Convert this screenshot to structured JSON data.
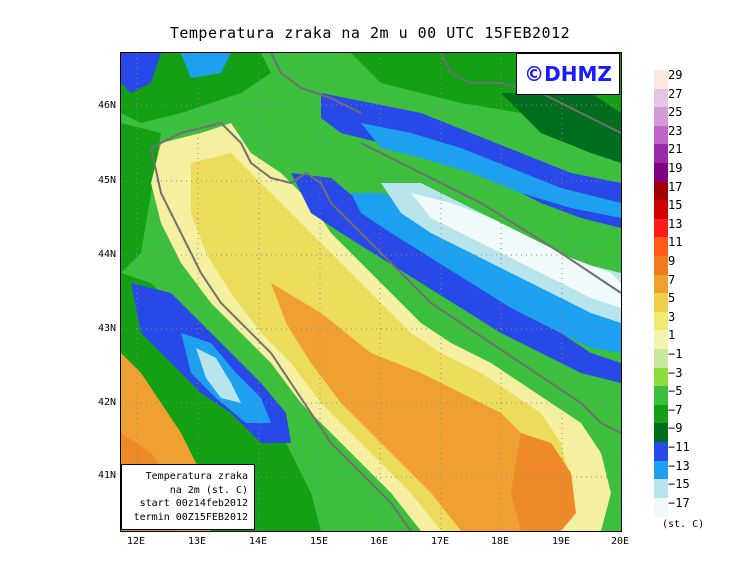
{
  "title": "Temperatura zraka na 2m u 00 UTC 15FEB2012",
  "logo": "©DHMZ",
  "info_box": {
    "line1": "Temperatura zraka",
    "line2": "na 2m (st. C)",
    "line3": "start 00z14feb2012",
    "line4": "termin 00Z15FEB2012"
  },
  "lat_labels": [
    "46N",
    "45N",
    "44N",
    "43N",
    "42N",
    "41N"
  ],
  "lon_labels": [
    "12E",
    "13E",
    "14E",
    "15E",
    "16E",
    "17E",
    "18E",
    "19E",
    "20E"
  ],
  "legend": {
    "labels": [
      "29",
      "27",
      "25",
      "23",
      "21",
      "19",
      "17",
      "15",
      "13",
      "11",
      "9",
      "7",
      "5",
      "3",
      "1",
      "−1",
      "−3",
      "−5",
      "−7",
      "−9",
      "−11",
      "−13",
      "−15",
      "−17"
    ],
    "colors": [
      "#fbe9dd",
      "#e4c6e4",
      "#d49ad8",
      "#c064c8",
      "#9a2aa6",
      "#800080",
      "#a00000",
      "#d00000",
      "#ff1a1a",
      "#ff5a1a",
      "#f07a1e",
      "#f0a030",
      "#f0d048",
      "#f0e870",
      "#f4f4b0",
      "#c8e8a0",
      "#8cdc3c",
      "#3cbf3c",
      "#14a014",
      "#006e1e",
      "#2848e8",
      "#1ea0f0",
      "#b8e4ec",
      "#f0fafa"
    ],
    "unit": "(st. C)"
  },
  "colors": {
    "deep_green": "#006e1e",
    "green": "#14a014",
    "light_green": "#3cbf3c",
    "blue": "#2848e8",
    "cyan": "#1ea0f0",
    "pale_cyan": "#b8e4ec",
    "pale_yellow": "#f4f0a0",
    "yellow": "#ecdc5c",
    "orange": "#f0a030",
    "dark_orange": "#ee8a28",
    "coast": "#707070"
  }
}
